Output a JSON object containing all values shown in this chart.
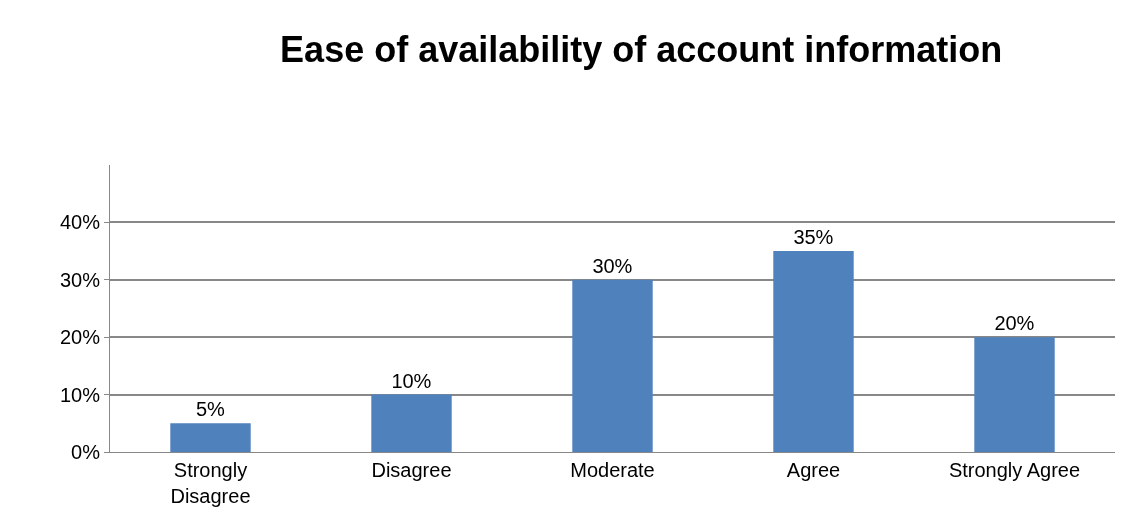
{
  "chart_data": {
    "type": "bar",
    "title": "Ease of availability of account information",
    "categories": [
      "Strongly\nDisagree",
      "Disagree",
      "Moderate",
      "Agree",
      "Strongly Agree"
    ],
    "values": [
      5,
      10,
      30,
      35,
      20
    ],
    "value_labels": [
      "5%",
      "10%",
      "30%",
      "35%",
      "20%"
    ],
    "color": "#4f81bd",
    "ylim": [
      0,
      50
    ],
    "yticks": [
      {
        "value": 0,
        "label": "0%"
      },
      {
        "value": 10,
        "label": "10%"
      },
      {
        "value": 20,
        "label": "20%"
      },
      {
        "value": 30,
        "label": "30%"
      },
      {
        "value": 40,
        "label": "40%"
      }
    ],
    "grid": "y"
  }
}
